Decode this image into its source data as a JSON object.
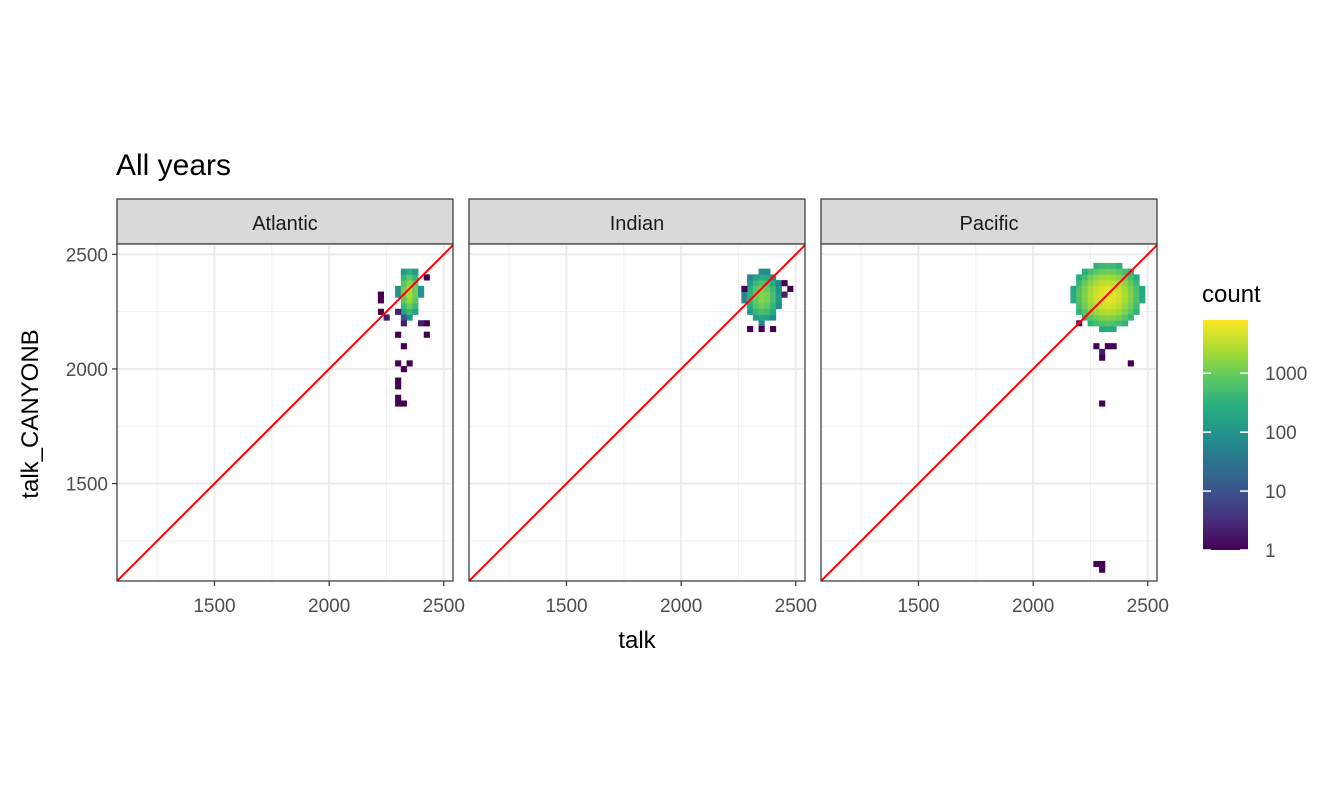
{
  "chart_data": {
    "type": "heatmap",
    "title": "All years",
    "xlabel": "talk",
    "ylabel": "talk_CANYONB",
    "xlim": [
      1075,
      2540
    ],
    "ylim": [
      1075,
      2545
    ],
    "x_ticks": [
      1500,
      2000,
      2500
    ],
    "y_ticks": [
      1500,
      2000,
      2500
    ],
    "x_minor_ticks": [
      1250,
      1750,
      2250
    ],
    "y_minor_ticks": [
      1250,
      1750,
      2250
    ],
    "grid": true,
    "reference_line": {
      "type": "identity",
      "color": "#ff0000"
    },
    "bin_width": 25,
    "legend": {
      "title": "count",
      "position": "right",
      "scale": "log10",
      "breaks": [
        1,
        10,
        100,
        1000
      ],
      "break_labels": [
        "1",
        "10",
        "100",
        "1000"
      ],
      "max": 8000,
      "palette": "viridis"
    },
    "facets": [
      {
        "label": "Atlantic",
        "clusters": [
          {
            "cx": 2355,
            "cy": 2335,
            "rx": 50,
            "ry": 110,
            "peak": 2500,
            "edge": 2
          },
          {
            "cx": 2330,
            "cy": 2250,
            "rx": 30,
            "ry": 60,
            "peak": 30,
            "edge": 1
          }
        ],
        "cells": [
          [
            2230,
            2320,
            1
          ],
          [
            2230,
            2300,
            1
          ],
          [
            2220,
            2240,
            1
          ],
          [
            2250,
            2230,
            2
          ],
          [
            2430,
            2400,
            1
          ],
          [
            2420,
            2190,
            1
          ],
          [
            2430,
            2160,
            1
          ],
          [
            2400,
            2190,
            2
          ],
          [
            2300,
            2150,
            1
          ],
          [
            2320,
            2110,
            1
          ],
          [
            2310,
            2020,
            1
          ],
          [
            2340,
            2030,
            1
          ],
          [
            2330,
            1990,
            1
          ],
          [
            2300,
            1950,
            1
          ],
          [
            2310,
            1920,
            1
          ],
          [
            2300,
            1880,
            1
          ],
          [
            2310,
            1860,
            1
          ],
          [
            2300,
            1840,
            1
          ],
          [
            2320,
            1840,
            1
          ]
        ]
      },
      {
        "label": "Indian",
        "clusters": [
          {
            "cx": 2360,
            "cy": 2310,
            "rx": 80,
            "ry": 115,
            "peak": 1500,
            "edge": 3
          }
        ],
        "cells": [
          [
            2470,
            2350,
            1
          ],
          [
            2460,
            2330,
            2
          ],
          [
            2460,
            2370,
            1
          ],
          [
            2270,
            2360,
            1
          ],
          [
            2310,
            2170,
            1
          ],
          [
            2350,
            2170,
            1
          ],
          [
            2390,
            2170,
            1
          ]
        ]
      },
      {
        "label": "Pacific",
        "clusters": [
          {
            "cx": 2320,
            "cy": 2310,
            "rx": 150,
            "ry": 145,
            "peak": 6000,
            "edge": 10
          }
        ],
        "cells": [
          [
            2190,
            2380,
            1
          ],
          [
            2190,
            2330,
            1
          ],
          [
            2190,
            2290,
            1
          ],
          [
            2200,
            2250,
            1
          ],
          [
            2210,
            2210,
            2
          ],
          [
            2270,
            2090,
            1
          ],
          [
            2300,
            2080,
            2
          ],
          [
            2330,
            2090,
            1
          ],
          [
            2350,
            2110,
            1
          ],
          [
            2290,
            2040,
            1
          ],
          [
            2420,
            2030,
            1
          ],
          [
            2290,
            1850,
            1
          ],
          [
            2280,
            1150,
            1
          ],
          [
            2300,
            1150,
            1
          ],
          [
            2300,
            1130,
            1
          ]
        ]
      }
    ]
  }
}
